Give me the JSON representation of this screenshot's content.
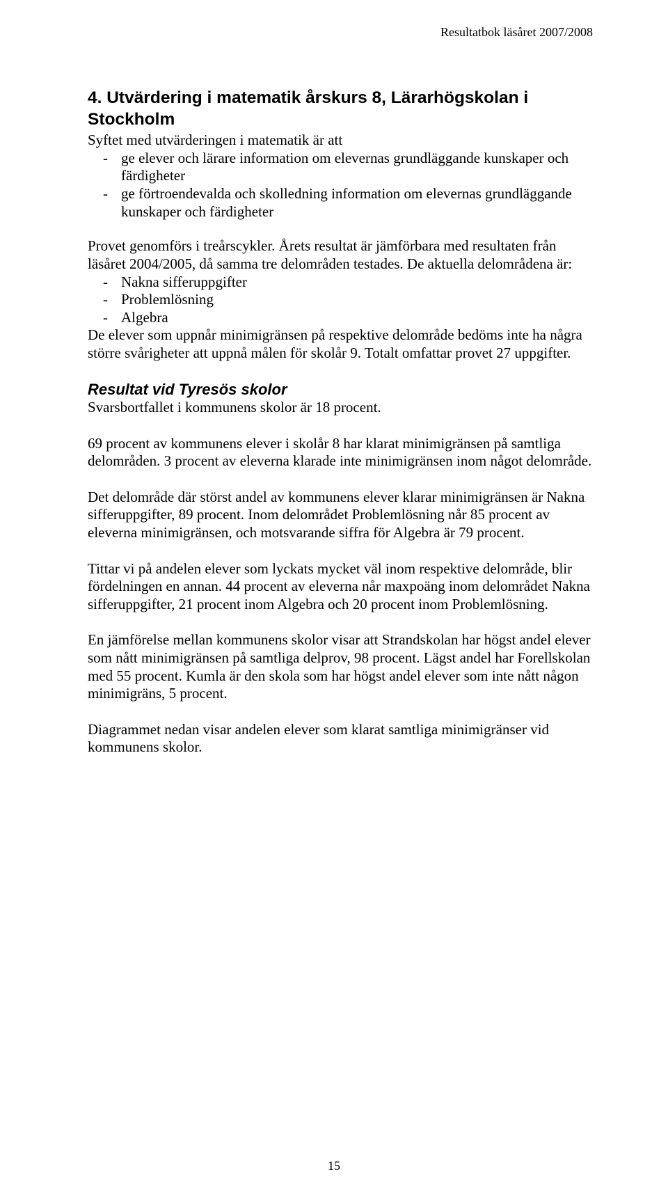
{
  "runningHeader": "Resultatbok läsåret 2007/2008",
  "pageNumber": "15",
  "heading": "4. Utvärdering i matematik årskurs 8, Lärarhögskolan i Stockholm",
  "intro": "Syftet med utvärderingen i matematik är att",
  "syfteBullets": [
    "ge elever och lärare information om elevernas grundläggande kunskaper och färdigheter",
    "ge förtroendevalda och skolledning information om elevernas grundläggande kunskaper och färdigheter"
  ],
  "p1": "Provet genomförs i treårscykler. Årets resultat är jämförbara med resultaten från läsåret 2004/2005, då samma tre delområden testades. De aktuella delområdena är:",
  "areaBullets": [
    "Nakna sifferuppgifter",
    "Problemlösning",
    "Algebra"
  ],
  "p2": "De elever som uppnår minimigränsen på respektive delområde bedöms inte ha några större svårigheter att uppnå målen för skolår 9. Totalt omfattar provet 27 uppgifter.",
  "subheading": "Resultat vid  Tyresös skolor",
  "p3": "Svarsbortfallet i kommunens skolor är 18 procent.",
  "p4": "69 procent av kommunens elever i skolår 8 har klarat minimigränsen på samtliga delområden. 3 procent av eleverna klarade inte minimigränsen inom något delområde.",
  "p5": "Det delområde där störst andel av kommunens elever klarar minimigränsen är Nakna sifferuppgifter, 89 procent. Inom delområdet Problemlösning når 85 procent av eleverna minimigränsen, och motsvarande siffra för Algebra är 79 procent.",
  "p6": "Tittar vi på andelen elever som lyckats mycket väl inom respektive delområde, blir fördelningen en annan. 44 procent av eleverna når maxpoäng inom delområdet Nakna sifferuppgifter, 21 procent inom Algebra och 20 procent inom Problemlösning.",
  "p7": "En jämförelse mellan kommunens skolor visar att Strandskolan har högst andel elever som nått minimigränsen på samtliga delprov, 98 procent. Lägst andel har Forellskolan med 55 procent. Kumla är den skola som har högst andel elever som inte nått någon minimigräns, 5 procent.",
  "p8": "Diagrammet nedan visar andelen elever som klarat samtliga minimigränser vid kommunens skolor."
}
